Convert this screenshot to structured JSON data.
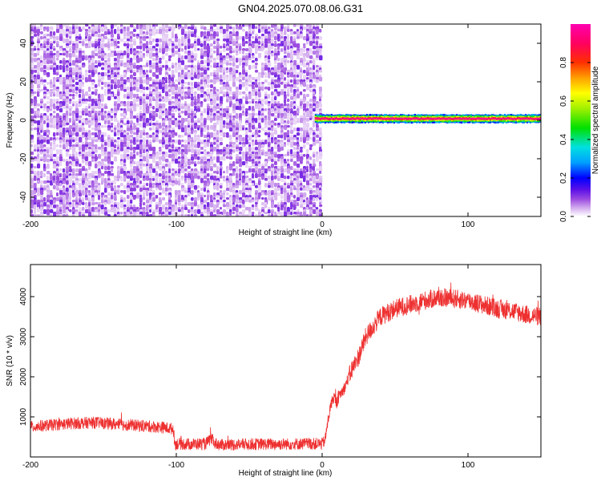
{
  "title": "GN04.2025.070.08.06.G31",
  "chart_data": [
    {
      "type": "heatmap",
      "xlabel": "Height of straight line (km)",
      "ylabel": "Frequency (Hz)",
      "xlim": [
        -200,
        150
      ],
      "ylim": [
        -50,
        50
      ],
      "xticks": [
        -200,
        -100,
        0,
        100
      ],
      "yticks": [
        -40,
        -20,
        0,
        20,
        40
      ],
      "colorbar": {
        "label": "Normalized spectral amplitude",
        "range": [
          0,
          1
        ],
        "ticks": [
          "0.0",
          "0.2",
          "0.4",
          "0.6",
          "0.8"
        ],
        "colors": [
          "#ffffff",
          "#d8b4f0",
          "#9b4be0",
          "#5a10e8",
          "#0000ff",
          "#00a0ff",
          "#00e0e0",
          "#00e000",
          "#a0f000",
          "#ffff00",
          "#ffa000",
          "#ff3000",
          "#ff0060",
          "#ff00b0"
        ]
      },
      "regions": [
        {
          "name": "noise",
          "x_range": [
            -200,
            -2
          ],
          "frequency_range": [
            -50,
            50
          ],
          "amplitude_range": [
            0.02,
            0.12
          ]
        },
        {
          "name": "signal",
          "x_range": [
            -5,
            150
          ],
          "frequency": 0.8,
          "peak_amplitude": 1.0
        }
      ]
    },
    {
      "type": "line",
      "xlabel": "Height of straight line (km)",
      "ylabel": "SNR (10 * v/v)",
      "xlim": [
        -200,
        150
      ],
      "ylim": [
        0,
        4800
      ],
      "xticks": [
        -200,
        -100,
        0,
        100
      ],
      "yticks": [
        1000,
        2000,
        3000,
        4000
      ],
      "color": "#ee3030",
      "profile": {
        "x": [
          -200,
          -185,
          -170,
          -155,
          -140,
          -125,
          -110,
          -102,
          -101,
          -90,
          -80,
          -76,
          -74,
          -70,
          -50,
          -30,
          -10,
          0,
          2,
          4,
          6,
          8,
          10,
          12,
          15,
          20,
          25,
          30,
          40,
          50,
          60,
          70,
          80,
          90,
          100,
          110,
          120,
          130,
          140,
          150
        ],
        "y": [
          750,
          800,
          840,
          860,
          810,
          780,
          740,
          700,
          330,
          320,
          330,
          450,
          350,
          300,
          320,
          320,
          330,
          330,
          420,
          900,
          1300,
          1500,
          1350,
          1550,
          1700,
          2150,
          2500,
          3000,
          3500,
          3700,
          3800,
          3900,
          3980,
          3950,
          3900,
          3800,
          3700,
          3650,
          3550,
          3500
        ]
      },
      "noise_amplitude": 150
    }
  ]
}
